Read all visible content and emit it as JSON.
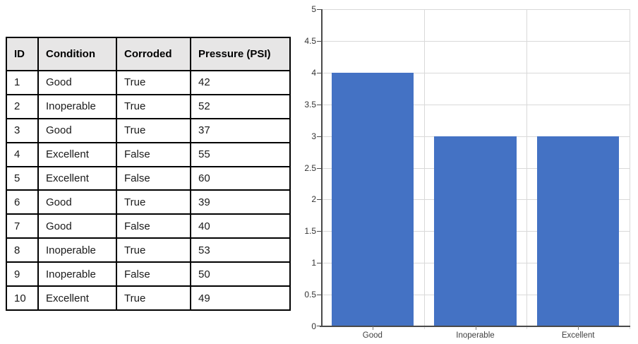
{
  "table": {
    "headers": [
      "ID",
      "Condition",
      "Corroded",
      "Pressure (PSI)"
    ],
    "rows": [
      [
        "1",
        "Good",
        "True",
        "42"
      ],
      [
        "2",
        "Inoperable",
        "True",
        "52"
      ],
      [
        "3",
        "Good",
        "True",
        "37"
      ],
      [
        "4",
        "Excellent",
        "False",
        "55"
      ],
      [
        "5",
        "Excellent",
        "False",
        "60"
      ],
      [
        "6",
        "Good",
        "True",
        "39"
      ],
      [
        "7",
        "Good",
        "False",
        "40"
      ],
      [
        "8",
        "Inoperable",
        "True",
        "53"
      ],
      [
        "9",
        "Inoperable",
        "False",
        "50"
      ],
      [
        "10",
        "Excellent",
        "True",
        "49"
      ]
    ]
  },
  "chart_data": {
    "type": "bar",
    "categories": [
      "Good",
      "Inoperable",
      "Excellent"
    ],
    "values": [
      4,
      3,
      3
    ],
    "title": "",
    "xlabel": "",
    "ylabel": "",
    "ylim": [
      0,
      5
    ],
    "ytick_step": 0.5,
    "ytick_labels": [
      "5",
      "4.5",
      "4",
      "3.5",
      "3",
      "2.5",
      "2",
      "1.5",
      "1",
      "0.5",
      "0"
    ],
    "grid": true,
    "legend": false,
    "bar_color": "#4472C4"
  },
  "colors": {
    "bar": "#4472C4",
    "table_header_bg": "#E7E6E6",
    "table_border": "#000000",
    "gridline": "#D9D9D9",
    "axis": "#4A4A4A"
  }
}
